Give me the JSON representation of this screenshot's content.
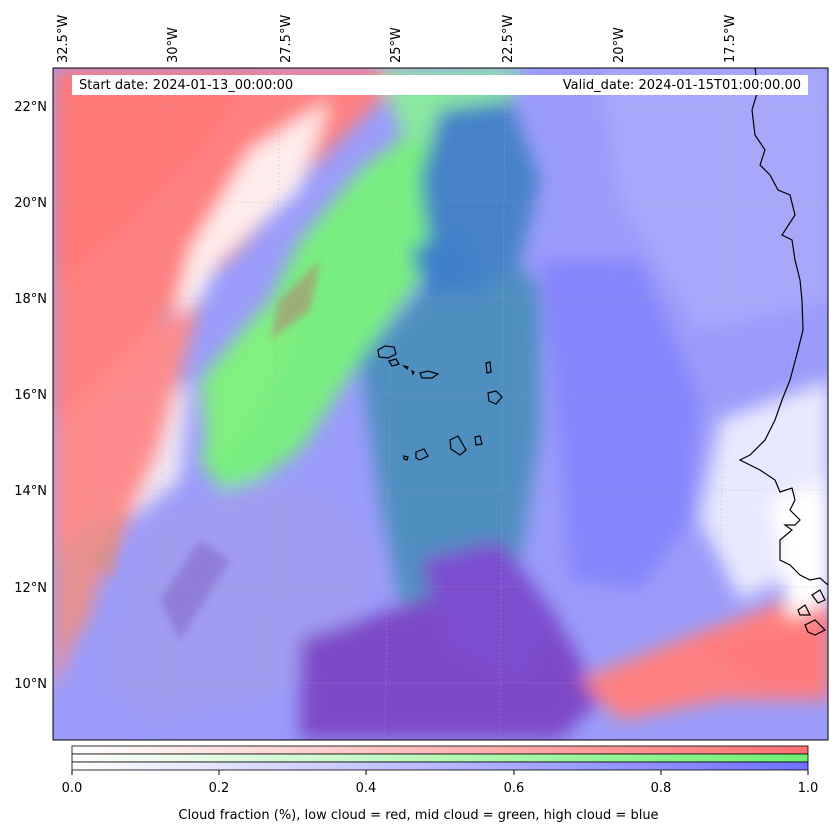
{
  "map": {
    "lon_ticks": [
      "32.5°W",
      "30°W",
      "27.5°W",
      "25°W",
      "22.5°W",
      "20°W",
      "17.5°W"
    ],
    "lat_ticks": [
      "22°N",
      "20°N",
      "18°N",
      "16°N",
      "14°N",
      "12°N",
      "10°N"
    ],
    "extent": {
      "lon_min": -32.6,
      "lon_max": -15.1,
      "lat_min": 8.8,
      "lat_max": 22.8
    },
    "start_date": "Start date: 2024-01-13_00:00:00",
    "valid_date": "Valid_date: 2024-01-15T01:00:00.00"
  },
  "colorbar": {
    "ticks": [
      "0.0",
      "0.2",
      "0.4",
      "0.6",
      "0.8",
      "1.0"
    ],
    "label": "Cloud fraction (%), low cloud = red, mid cloud = green, high cloud = blue",
    "colors": {
      "low": "#ff7070",
      "mid": "#70f070",
      "high": "#7070ff"
    }
  }
}
